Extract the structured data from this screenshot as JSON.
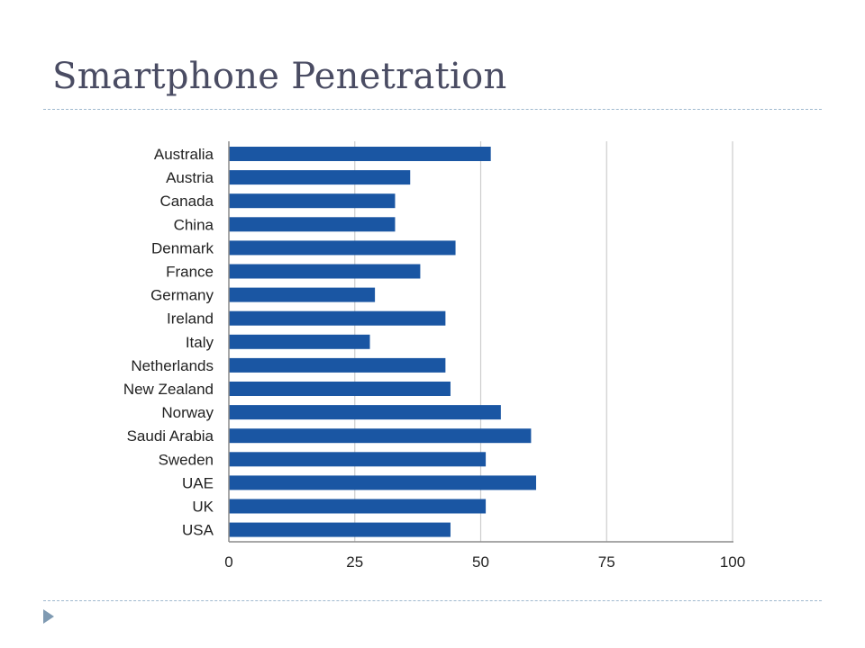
{
  "slide": {
    "title": "Smartphone Penetration"
  },
  "colors": {
    "bar": "#1a56a3",
    "grid": "#cccccc",
    "axis": "#8c8c8c",
    "label": "#222222",
    "title": "#4a4c63",
    "divider": "#9fb9cf",
    "bullet": "#7f9ab2"
  },
  "chart_data": {
    "type": "bar",
    "orientation": "horizontal",
    "title": "",
    "xlabel": "",
    "ylabel": "",
    "categories": [
      "Australia",
      "Austria",
      "Canada",
      "China",
      "Denmark",
      "France",
      "Germany",
      "Ireland",
      "Italy",
      "Netherlands",
      "New Zealand",
      "Norway",
      "Saudi Arabia",
      "Sweden",
      "UAE",
      "UK",
      "USA"
    ],
    "values": [
      52,
      36,
      33,
      33,
      45,
      38,
      29,
      43,
      28,
      43,
      44,
      54,
      60,
      51,
      61,
      51,
      44
    ],
    "xlim": [
      0,
      100
    ],
    "xticks": [
      0,
      25,
      50,
      75,
      100
    ],
    "grid": true,
    "legend": "none"
  }
}
